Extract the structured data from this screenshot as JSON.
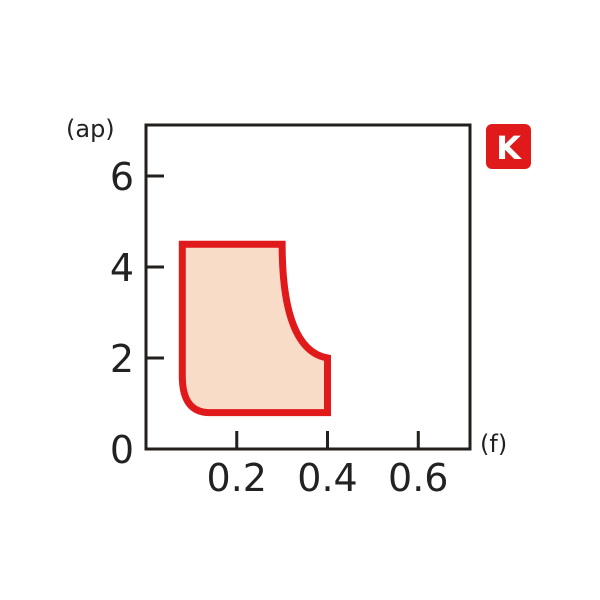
{
  "chart_data": {
    "type": "area",
    "title": "",
    "xlabel": "(f)",
    "ylabel": "(ap)",
    "xlim": [
      0,
      0.714
    ],
    "ylim": [
      0,
      7.12
    ],
    "x_ticks": [
      0.2,
      0.4,
      0.6
    ],
    "x_tick_labels": [
      "0.2",
      "0.4",
      "0.6"
    ],
    "y_ticks": [
      0,
      2,
      4,
      6
    ],
    "y_tick_labels": [
      "0",
      "2",
      "4",
      "6"
    ],
    "grid": false,
    "region": {
      "boundary": [
        {
          "f": 0.08,
          "ap": 4.5
        },
        {
          "f": 0.3,
          "ap": 4.5
        },
        {
          "f": 0.4,
          "ap": 2.0,
          "curve": true
        },
        {
          "f": 0.4,
          "ap": 0.8
        },
        {
          "f": 0.14,
          "ap": 0.8
        },
        {
          "f": 0.08,
          "ap": 1.6,
          "curve": true
        }
      ],
      "fill_color": "#f8dcc8",
      "stroke_color": "#e0191b"
    },
    "badge": {
      "text": "K",
      "color": "#e0191b"
    }
  }
}
